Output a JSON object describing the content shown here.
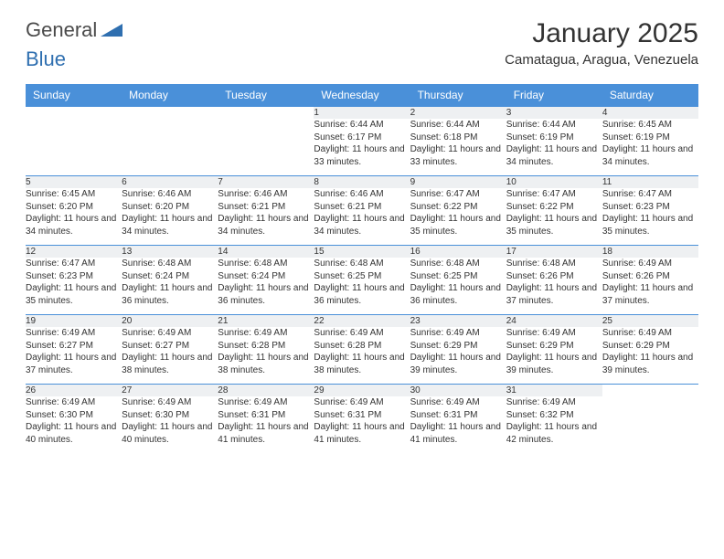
{
  "brand": {
    "part1": "General",
    "part2": "Blue"
  },
  "colors": {
    "header_bg": "#4a90d9",
    "header_text": "#ffffff",
    "daynum_bg": "#eef0f2",
    "row_divider": "#4a90d9",
    "text": "#333333",
    "logo_gray": "#4a4a4a",
    "logo_blue": "#2f6fb0"
  },
  "title": "January 2025",
  "location": "Camatagua, Aragua, Venezuela",
  "weekdays": [
    "Sunday",
    "Monday",
    "Tuesday",
    "Wednesday",
    "Thursday",
    "Friday",
    "Saturday"
  ],
  "weeks": [
    [
      null,
      null,
      null,
      {
        "n": "1",
        "sr": "6:44 AM",
        "ss": "6:17 PM",
        "dl": "11 hours and 33 minutes."
      },
      {
        "n": "2",
        "sr": "6:44 AM",
        "ss": "6:18 PM",
        "dl": "11 hours and 33 minutes."
      },
      {
        "n": "3",
        "sr": "6:44 AM",
        "ss": "6:19 PM",
        "dl": "11 hours and 34 minutes."
      },
      {
        "n": "4",
        "sr": "6:45 AM",
        "ss": "6:19 PM",
        "dl": "11 hours and 34 minutes."
      }
    ],
    [
      {
        "n": "5",
        "sr": "6:45 AM",
        "ss": "6:20 PM",
        "dl": "11 hours and 34 minutes."
      },
      {
        "n": "6",
        "sr": "6:46 AM",
        "ss": "6:20 PM",
        "dl": "11 hours and 34 minutes."
      },
      {
        "n": "7",
        "sr": "6:46 AM",
        "ss": "6:21 PM",
        "dl": "11 hours and 34 minutes."
      },
      {
        "n": "8",
        "sr": "6:46 AM",
        "ss": "6:21 PM",
        "dl": "11 hours and 34 minutes."
      },
      {
        "n": "9",
        "sr": "6:47 AM",
        "ss": "6:22 PM",
        "dl": "11 hours and 35 minutes."
      },
      {
        "n": "10",
        "sr": "6:47 AM",
        "ss": "6:22 PM",
        "dl": "11 hours and 35 minutes."
      },
      {
        "n": "11",
        "sr": "6:47 AM",
        "ss": "6:23 PM",
        "dl": "11 hours and 35 minutes."
      }
    ],
    [
      {
        "n": "12",
        "sr": "6:47 AM",
        "ss": "6:23 PM",
        "dl": "11 hours and 35 minutes."
      },
      {
        "n": "13",
        "sr": "6:48 AM",
        "ss": "6:24 PM",
        "dl": "11 hours and 36 minutes."
      },
      {
        "n": "14",
        "sr": "6:48 AM",
        "ss": "6:24 PM",
        "dl": "11 hours and 36 minutes."
      },
      {
        "n": "15",
        "sr": "6:48 AM",
        "ss": "6:25 PM",
        "dl": "11 hours and 36 minutes."
      },
      {
        "n": "16",
        "sr": "6:48 AM",
        "ss": "6:25 PM",
        "dl": "11 hours and 36 minutes."
      },
      {
        "n": "17",
        "sr": "6:48 AM",
        "ss": "6:26 PM",
        "dl": "11 hours and 37 minutes."
      },
      {
        "n": "18",
        "sr": "6:49 AM",
        "ss": "6:26 PM",
        "dl": "11 hours and 37 minutes."
      }
    ],
    [
      {
        "n": "19",
        "sr": "6:49 AM",
        "ss": "6:27 PM",
        "dl": "11 hours and 37 minutes."
      },
      {
        "n": "20",
        "sr": "6:49 AM",
        "ss": "6:27 PM",
        "dl": "11 hours and 38 minutes."
      },
      {
        "n": "21",
        "sr": "6:49 AM",
        "ss": "6:28 PM",
        "dl": "11 hours and 38 minutes."
      },
      {
        "n": "22",
        "sr": "6:49 AM",
        "ss": "6:28 PM",
        "dl": "11 hours and 38 minutes."
      },
      {
        "n": "23",
        "sr": "6:49 AM",
        "ss": "6:29 PM",
        "dl": "11 hours and 39 minutes."
      },
      {
        "n": "24",
        "sr": "6:49 AM",
        "ss": "6:29 PM",
        "dl": "11 hours and 39 minutes."
      },
      {
        "n": "25",
        "sr": "6:49 AM",
        "ss": "6:29 PM",
        "dl": "11 hours and 39 minutes."
      }
    ],
    [
      {
        "n": "26",
        "sr": "6:49 AM",
        "ss": "6:30 PM",
        "dl": "11 hours and 40 minutes."
      },
      {
        "n": "27",
        "sr": "6:49 AM",
        "ss": "6:30 PM",
        "dl": "11 hours and 40 minutes."
      },
      {
        "n": "28",
        "sr": "6:49 AM",
        "ss": "6:31 PM",
        "dl": "11 hours and 41 minutes."
      },
      {
        "n": "29",
        "sr": "6:49 AM",
        "ss": "6:31 PM",
        "dl": "11 hours and 41 minutes."
      },
      {
        "n": "30",
        "sr": "6:49 AM",
        "ss": "6:31 PM",
        "dl": "11 hours and 41 minutes."
      },
      {
        "n": "31",
        "sr": "6:49 AM",
        "ss": "6:32 PM",
        "dl": "11 hours and 42 minutes."
      },
      null
    ]
  ],
  "labels": {
    "sunrise": "Sunrise: ",
    "sunset": "Sunset: ",
    "daylight": "Daylight: "
  }
}
